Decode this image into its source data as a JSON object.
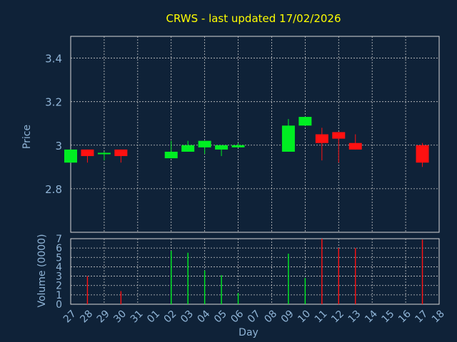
{
  "chart_data": [
    {
      "type": "candlestick",
      "title": "CRWS - last updated 17/02/2026",
      "ylabel": "Price",
      "ylim": [
        2.6,
        3.5
      ],
      "yticks": [
        "2.8",
        "3",
        "3.2",
        "3.4"
      ],
      "grid": true,
      "categories": [
        "27",
        "28",
        "29",
        "30",
        "31",
        "01",
        "02",
        "03",
        "04",
        "05",
        "06",
        "07",
        "08",
        "09",
        "10",
        "11",
        "12",
        "13",
        "14",
        "15",
        "16",
        "17",
        "18"
      ],
      "candles": [
        {
          "day": "27",
          "open": 2.92,
          "high": 2.98,
          "low": 2.92,
          "close": 2.98
        },
        {
          "day": "28",
          "open": 2.98,
          "high": 2.98,
          "low": 2.92,
          "close": 2.95
        },
        {
          "day": "29",
          "open": 2.96,
          "high": 2.97,
          "low": 2.93,
          "close": 2.965
        },
        {
          "day": "30",
          "open": 2.98,
          "high": 2.98,
          "low": 2.92,
          "close": 2.95
        },
        {
          "day": "02",
          "open": 2.94,
          "high": 3.02,
          "low": 2.94,
          "close": 2.97
        },
        {
          "day": "03",
          "open": 2.97,
          "high": 3.02,
          "low": 2.97,
          "close": 3.0
        },
        {
          "day": "04",
          "open": 2.99,
          "high": 3.02,
          "low": 2.96,
          "close": 3.02
        },
        {
          "day": "05",
          "open": 2.98,
          "high": 3.0,
          "low": 2.95,
          "close": 3.0
        },
        {
          "day": "06",
          "open": 2.99,
          "high": 3.01,
          "low": 2.99,
          "close": 3.0
        },
        {
          "day": "09",
          "open": 2.97,
          "high": 3.12,
          "low": 2.97,
          "close": 3.09
        },
        {
          "day": "10",
          "open": 3.09,
          "high": 3.13,
          "low": 3.09,
          "close": 3.13
        },
        {
          "day": "11",
          "open": 3.05,
          "high": 3.08,
          "low": 2.93,
          "close": 3.01
        },
        {
          "day": "12",
          "open": 3.06,
          "high": 3.06,
          "low": 2.92,
          "close": 3.03
        },
        {
          "day": "13",
          "open": 3.01,
          "high": 3.05,
          "low": 2.98,
          "close": 2.98
        },
        {
          "day": "17",
          "open": 3.0,
          "high": 3.01,
          "low": 2.9,
          "close": 2.92
        }
      ],
      "colors": {
        "up": "#00ee22",
        "down": "#ff1111",
        "background": "#0f2238",
        "grid": "#c8c8c8",
        "text": "#8fb4d6",
        "title": "#ffff00"
      }
    },
    {
      "type": "bar",
      "ylabel": "Volume (0000)",
      "xlabel": "Day",
      "ylim": [
        0,
        7
      ],
      "yticks": [
        "0",
        "1",
        "2",
        "3",
        "4",
        "5",
        "6",
        "7"
      ],
      "categories": [
        "27",
        "28",
        "29",
        "30",
        "31",
        "01",
        "02",
        "03",
        "04",
        "05",
        "06",
        "07",
        "08",
        "09",
        "10",
        "11",
        "12",
        "13",
        "14",
        "15",
        "16",
        "17",
        "18"
      ],
      "bars": [
        {
          "day": "28",
          "value": 3.0,
          "direction": "down"
        },
        {
          "day": "30",
          "value": 1.4,
          "direction": "down"
        },
        {
          "day": "02",
          "value": 5.7,
          "direction": "up"
        },
        {
          "day": "03",
          "value": 5.5,
          "direction": "up"
        },
        {
          "day": "04",
          "value": 3.6,
          "direction": "up"
        },
        {
          "day": "05",
          "value": 3.1,
          "direction": "up"
        },
        {
          "day": "06",
          "value": 1.2,
          "direction": "up"
        },
        {
          "day": "09",
          "value": 5.4,
          "direction": "up"
        },
        {
          "day": "10",
          "value": 2.8,
          "direction": "up"
        },
        {
          "day": "11",
          "value": 7.0,
          "direction": "down"
        },
        {
          "day": "12",
          "value": 6.0,
          "direction": "down"
        },
        {
          "day": "13",
          "value": 6.0,
          "direction": "down"
        },
        {
          "day": "17",
          "value": 6.9,
          "direction": "down"
        }
      ]
    }
  ]
}
